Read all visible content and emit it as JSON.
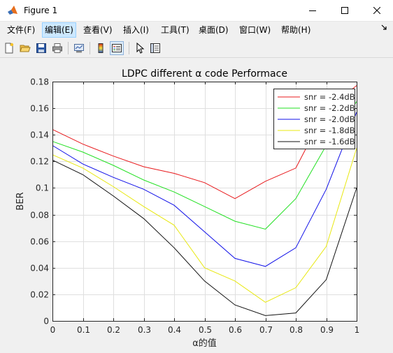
{
  "window": {
    "title": "Figure 1"
  },
  "menu": [
    {
      "label": "文件(F)"
    },
    {
      "label": "编辑(E)"
    },
    {
      "label": "查看(V)"
    },
    {
      "label": "插入(I)"
    },
    {
      "label": "工具(T)"
    },
    {
      "label": "桌面(D)"
    },
    {
      "label": "窗口(W)"
    },
    {
      "label": "帮助(H)"
    }
  ],
  "toolbar": {
    "icons": [
      "new-figure-icon",
      "open-file-icon",
      "save-icon",
      "print-icon",
      "link-plot-icon",
      "colorbar-icon",
      "legend-icon",
      "edit-plot-icon",
      "property-inspector-icon"
    ]
  },
  "chart_data": {
    "type": "line",
    "title": "LDPC different α code Performace",
    "xlabel": "α的值",
    "ylabel": "BER",
    "xlim": [
      0,
      1
    ],
    "ylim": [
      0,
      0.18
    ],
    "xticks": [
      "0",
      "0.1",
      "0.2",
      "0.3",
      "0.4",
      "0.5",
      "0.6",
      "0.7",
      "0.8",
      "0.9",
      "1"
    ],
    "yticks": [
      "0",
      "0.02",
      "0.04",
      "0.06",
      "0.08",
      "0.1",
      "0.12",
      "0.14",
      "0.16",
      "0.18"
    ],
    "grid": true,
    "legend_position": "top-right",
    "x": [
      0,
      0.1,
      0.2,
      0.3,
      0.4,
      0.5,
      0.6,
      0.7,
      0.8,
      0.9,
      1
    ],
    "series": [
      {
        "name": "snr = -2.4dB",
        "color": "#e8191c",
        "values": [
          0.144,
          0.133,
          0.124,
          0.116,
          0.111,
          0.104,
          0.092,
          0.105,
          0.115,
          0.159,
          0.177
        ]
      },
      {
        "name": "snr = -2.2dB",
        "color": "#22e022",
        "values": [
          0.135,
          0.127,
          0.117,
          0.106,
          0.097,
          0.086,
          0.075,
          0.069,
          0.092,
          0.132,
          0.165
        ]
      },
      {
        "name": "snr = -2.0dB",
        "color": "#1010e8",
        "values": [
          0.132,
          0.118,
          0.108,
          0.099,
          0.087,
          0.067,
          0.047,
          0.041,
          0.055,
          0.099,
          0.157
        ]
      },
      {
        "name": "snr = -1.8dB",
        "color": "#e8e810",
        "values": [
          0.125,
          0.115,
          0.101,
          0.086,
          0.072,
          0.04,
          0.03,
          0.014,
          0.025,
          0.056,
          0.13
        ]
      },
      {
        "name": "snr = -1.6dB",
        "color": "#111111",
        "values": [
          0.121,
          0.11,
          0.094,
          0.077,
          0.055,
          0.03,
          0.012,
          0.004,
          0.006,
          0.031,
          0.1
        ]
      }
    ]
  }
}
